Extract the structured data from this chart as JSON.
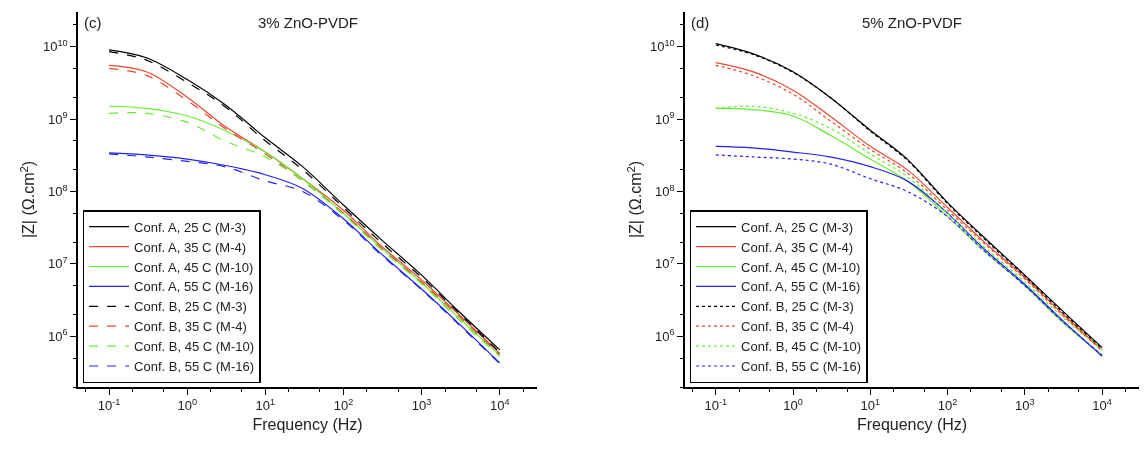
{
  "chart_data": [
    {
      "type": "line",
      "title": "3% ZnO-PVDF",
      "xlabel": "Frequency (Hz)",
      "ylabel": "|Z| (Ω.cm$^{2}$)",
      "annotations": [
        "(c)"
      ],
      "log": "xy",
      "legend": "bottom left",
      "marker": "none",
      "xlim": [
        0.04,
        30000
      ],
      "ylim": [
        200000,
        30000000000
      ],
      "xticks": [
        {
          "value": 0.1,
          "label": "10$^{-1}$"
        },
        {
          "value": 1,
          "label": "10$^{0}$"
        },
        {
          "value": 10,
          "label": "10$^{1}$"
        },
        {
          "value": 100,
          "label": "10$^{2}$"
        },
        {
          "value": 1000,
          "label": "10$^{3}$"
        },
        {
          "value": 10000,
          "label": "10$^{4}$"
        }
      ],
      "yticks": [
        {
          "value": 1000000,
          "label": "10$^{6}$"
        },
        {
          "value": 10000000,
          "label": "10$^{7}$"
        },
        {
          "value": 100000000,
          "label": "10$^{8}$"
        },
        {
          "value": 1000000000,
          "label": "10$^{9}$"
        },
        {
          "value": 10000000000,
          "label": "10$^{10}$"
        }
      ],
      "x": [
        0.1,
        0.3,
        1,
        3,
        10,
        30,
        100,
        300,
        1000,
        3000,
        10000
      ],
      "series": [
        {
          "name": "Conf. A, 25 C (M-3)",
          "color": "#000000",
          "line_style": "solid",
          "values": [
            9000000000.0,
            7000000000.0,
            3500000000.0,
            1600000000.0,
            550000000.0,
            220000000.0,
            65000000.0,
            22000000.0,
            7000000.0,
            2200000.0,
            650000.0
          ]
        },
        {
          "name": "Conf. A, 35 C (M-4)",
          "color": "#e8482e",
          "line_style": "solid",
          "values": [
            5500000000.0,
            4500000000.0,
            2000000000.0,
            800000000.0,
            350000000.0,
            150000000.0,
            55000000.0,
            18000000.0,
            6000000.0,
            2000000.0,
            580000.0
          ]
        },
        {
          "name": "Conf. A, 45 C (M-10)",
          "color": "#66ee33",
          "line_style": "solid",
          "values": [
            1500000000.0,
            1400000000.0,
            1100000000.0,
            700000000.0,
            350000000.0,
            150000000.0,
            50000000.0,
            17000000.0,
            5500000.0,
            1800000.0,
            550000.0
          ]
        },
        {
          "name": "Conf. A, 55 C (M-16)",
          "color": "#2222ee",
          "line_style": "solid",
          "values": [
            340000000.0,
            320000000.0,
            280000000.0,
            230000000.0,
            170000000.0,
            110000000.0,
            42000000.0,
            14000000.0,
            4500000.0,
            1500000.0,
            430000.0
          ]
        },
        {
          "name": "Conf. B, 25 C (M-3)",
          "color": "#000000",
          "line_style": "dashed",
          "values": [
            8500000000.0,
            6500000000.0,
            3200000000.0,
            1500000000.0,
            500000000.0,
            200000000.0,
            60000000.0,
            20000000.0,
            6500000.0,
            2100000.0,
            600000.0
          ]
        },
        {
          "name": "Conf. B, 35 C (M-4)",
          "color": "#e8482e",
          "line_style": "dashed",
          "values": [
            5000000000.0,
            4000000000.0,
            1800000000.0,
            750000000.0,
            330000000.0,
            140000000.0,
            50000000.0,
            17000000.0,
            5600000.0,
            1900000.0,
            560000.0
          ]
        },
        {
          "name": "Conf. B, 45 C (M-10)",
          "color": "#66ee33",
          "line_style": "dashed",
          "values": [
            1200000000.0,
            1200000000.0,
            900000000.0,
            500000000.0,
            300000000.0,
            140000000.0,
            48000000.0,
            16000000.0,
            5300000.0,
            1700000.0,
            530000.0
          ]
        },
        {
          "name": "Conf. B, 55 C (M-16)",
          "color": "#2222ee",
          "line_style": "dashed",
          "values": [
            330000000.0,
            300000000.0,
            260000000.0,
            220000000.0,
            140000000.0,
            100000000.0,
            40000000.0,
            13500000.0,
            4400000.0,
            1450000.0,
            420000.0
          ]
        }
      ]
    },
    {
      "type": "line",
      "title": "5% ZnO-PVDF",
      "xlabel": "Frequency (Hz)",
      "ylabel": "|Z| (Ω.cm$^{2}$)",
      "annotations": [
        "(d)"
      ],
      "log": "xy",
      "legend": "bottom left",
      "marker": "none",
      "xlim": [
        0.04,
        30000
      ],
      "ylim": [
        200000,
        30000000000
      ],
      "xticks": [
        {
          "value": 0.1,
          "label": "10$^{-1}$"
        },
        {
          "value": 1,
          "label": "10$^{0}$"
        },
        {
          "value": 10,
          "label": "10$^{1}$"
        },
        {
          "value": 100,
          "label": "10$^{2}$"
        },
        {
          "value": 1000,
          "label": "10$^{3}$"
        },
        {
          "value": 10000,
          "label": "10$^{4}$"
        }
      ],
      "yticks": [
        {
          "value": 1000000,
          "label": "10$^{6}$"
        },
        {
          "value": 10000000,
          "label": "10$^{7}$"
        },
        {
          "value": 100000000,
          "label": "10$^{8}$"
        },
        {
          "value": 1000000000,
          "label": "10$^{9}$"
        },
        {
          "value": 10000000000,
          "label": "10$^{10}$"
        }
      ],
      "x": [
        0.1,
        0.3,
        1,
        3,
        10,
        30,
        100,
        300,
        1000,
        3000,
        10000
      ],
      "series": [
        {
          "name": "Conf. A, 25 C (M-3)",
          "color": "#000000",
          "line_style": "solid",
          "values": [
            11000000000.0,
            8000000000.0,
            4500000000.0,
            2000000000.0,
            700000000.0,
            280000000.0,
            70000000.0,
            23000000.0,
            7000000.0,
            2300000.0,
            700000.0
          ]
        },
        {
          "name": "Conf. A, 35 C (M-4)",
          "color": "#e8482e",
          "line_style": "solid",
          "values": [
            6000000000.0,
            4500000000.0,
            2500000000.0,
            1100000000.0,
            420000000.0,
            200000000.0,
            60000000.0,
            20000000.0,
            6500000.0,
            2100000.0,
            650000.0
          ]
        },
        {
          "name": "Conf. A, 45 C (M-10)",
          "color": "#66ee33",
          "line_style": "solid",
          "values": [
            1400000000.0,
            1350000000.0,
            1100000000.0,
            600000000.0,
            280000000.0,
            140000000.0,
            45000000.0,
            15000000.0,
            5000000.0,
            1600000.0,
            550000.0
          ]
        },
        {
          "name": "Conf. A, 55 C (M-16)",
          "color": "#2222ee",
          "line_style": "solid",
          "values": [
            420000000.0,
            400000000.0,
            350000000.0,
            300000000.0,
            220000000.0,
            140000000.0,
            50000000.0,
            16000000.0,
            5200000.0,
            1700000.0,
            530000.0
          ]
        },
        {
          "name": "Conf. B, 25 C (M-3)",
          "color": "#000000",
          "line_style": "dotted",
          "values": [
            10500000000.0,
            7800000000.0,
            4400000000.0,
            2000000000.0,
            680000000.0,
            270000000.0,
            68000000.0,
            22000000.0,
            6800000.0,
            2200000.0,
            680000.0
          ]
        },
        {
          "name": "Conf. B, 35 C (M-4)",
          "color": "#e8482e",
          "line_style": "dotted",
          "values": [
            5500000000.0,
            4000000000.0,
            2200000000.0,
            950000000.0,
            380000000.0,
            180000000.0,
            55000000.0,
            19000000.0,
            6200000.0,
            2000000.0,
            630000.0
          ]
        },
        {
          "name": "Conf. B, 45 C (M-10)",
          "color": "#66ee33",
          "line_style": "dotted",
          "values": [
            1400000000.0,
            1500000000.0,
            1200000000.0,
            750000000.0,
            330000000.0,
            160000000.0,
            50000000.0,
            17000000.0,
            5600000.0,
            1900000.0,
            650000.0
          ]
        },
        {
          "name": "Conf. B, 55 C (M-16)",
          "color": "#2222ee",
          "line_style": "dotted",
          "values": [
            320000000.0,
            300000000.0,
            280000000.0,
            240000000.0,
            150000000.0,
            100000000.0,
            45000000.0,
            15000000.0,
            5000000.0,
            1650000.0,
            550000.0
          ]
        }
      ]
    }
  ]
}
